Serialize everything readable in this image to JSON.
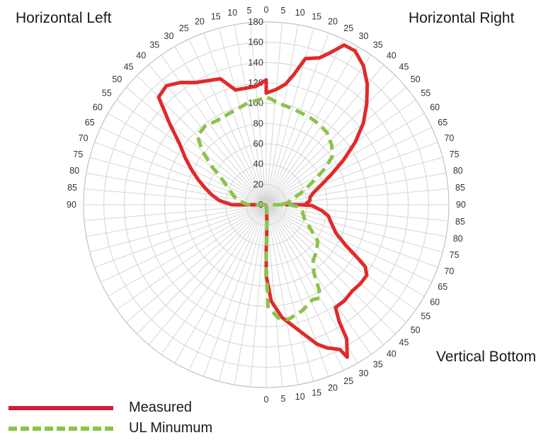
{
  "chart_data": {
    "type": "polar-line",
    "title": "",
    "quadrant_labels": {
      "top_left": "Horizontal Left",
      "top_right": "Horizontal Right",
      "bottom_right": "Vertical Bottom"
    },
    "radial_axis": {
      "min": 0,
      "max": 180,
      "step": 20,
      "tick_labels": [
        "0",
        "20",
        "40",
        "60",
        "80",
        "100",
        "120",
        "140",
        "160",
        "180"
      ]
    },
    "angular_tick_labels": [
      "0",
      "5",
      "10",
      "15",
      "20",
      "25",
      "30",
      "35",
      "40",
      "45",
      "50",
      "55",
      "60",
      "65",
      "70",
      "75",
      "80",
      "85",
      "90"
    ],
    "angle_unit": "degrees",
    "series": [
      {
        "name": "Measured",
        "color": "#e02a2a",
        "line": "solid",
        "points": [
          {
            "r": 0,
            "a": 180
          },
          {
            "r": 5,
            "a": 175
          },
          {
            "r": 20,
            "a": 178
          },
          {
            "r": 45,
            "a": 180
          },
          {
            "r": 70,
            "a": 180
          },
          {
            "r": 95,
            "a": 177
          },
          {
            "r": 112,
            "a": 172
          },
          {
            "r": 129,
            "a": 165
          },
          {
            "r": 146,
            "a": 160
          },
          {
            "r": 153,
            "a": 157
          },
          {
            "r": 160,
            "a": 153
          },
          {
            "r": 170,
            "a": 152
          },
          {
            "r": 154,
            "a": 149
          },
          {
            "r": 136,
            "a": 148
          },
          {
            "r": 122,
            "a": 146
          },
          {
            "r": 122,
            "a": 141
          },
          {
            "r": 120,
            "a": 135
          },
          {
            "r": 121,
            "a": 130
          },
          {
            "r": 121,
            "a": 125
          },
          {
            "r": 115,
            "a": 122
          },
          {
            "r": 103,
            "a": 120
          },
          {
            "r": 88,
            "a": 117
          },
          {
            "r": 74,
            "a": 112
          },
          {
            "r": 67,
            "a": 106
          },
          {
            "r": 62,
            "a": 100
          },
          {
            "r": 55,
            "a": 96
          },
          {
            "r": 45,
            "a": 91
          },
          {
            "r": 35,
            "a": 90
          },
          {
            "r": 20,
            "a": 90
          },
          {
            "r": 38,
            "a": 90
          },
          {
            "r": 43,
            "a": 85
          },
          {
            "r": 44,
            "a": 80
          },
          {
            "r": 49,
            "a": 75
          },
          {
            "r": 58,
            "a": 70
          },
          {
            "r": 71,
            "a": 65
          },
          {
            "r": 88,
            "a": 60
          },
          {
            "r": 107,
            "a": 55
          },
          {
            "r": 125,
            "a": 50
          },
          {
            "r": 140,
            "a": 45
          },
          {
            "r": 155,
            "a": 40
          },
          {
            "r": 167,
            "a": 35
          },
          {
            "r": 175,
            "a": 30
          },
          {
            "r": 175,
            "a": 26
          },
          {
            "r": 163,
            "a": 23
          },
          {
            "r": 154,
            "a": 20
          },
          {
            "r": 149,
            "a": 15
          },
          {
            "r": 131,
            "a": 12
          },
          {
            "r": 120,
            "a": 9
          },
          {
            "r": 114,
            "a": 5
          },
          {
            "r": 110,
            "a": 0
          },
          {
            "r": 123,
            "a": 0
          },
          {
            "r": 117,
            "a": -5
          },
          {
            "r": 117,
            "a": -15
          },
          {
            "r": 132,
            "a": -20
          },
          {
            "r": 139,
            "a": -30
          },
          {
            "r": 147,
            "a": -35
          },
          {
            "r": 153,
            "a": -40
          },
          {
            "r": 150,
            "a": -45
          },
          {
            "r": 124,
            "a": -50
          },
          {
            "r": 104,
            "a": -55
          },
          {
            "r": 92,
            "a": -60
          },
          {
            "r": 81,
            "a": -65
          },
          {
            "r": 71,
            "a": -70
          },
          {
            "r": 62,
            "a": -75
          },
          {
            "r": 54,
            "a": -80
          },
          {
            "r": 46,
            "a": -85
          },
          {
            "r": 34,
            "a": -90
          },
          {
            "r": 8,
            "a": -90
          },
          {
            "r": 0,
            "a": -90
          }
        ]
      },
      {
        "name": "UL Minumum",
        "color": "#8bc34a",
        "line": "dashed",
        "points": [
          {
            "r": 0,
            "a": 180
          },
          {
            "r": 5,
            "a": 175
          },
          {
            "r": 20,
            "a": 178
          },
          {
            "r": 60,
            "a": 180
          },
          {
            "r": 100,
            "a": 179
          },
          {
            "r": 112,
            "a": 174
          },
          {
            "r": 115,
            "a": 169
          },
          {
            "r": 110,
            "a": 161
          },
          {
            "r": 104,
            "a": 154
          },
          {
            "r": 106,
            "a": 150
          },
          {
            "r": 98,
            "a": 148
          },
          {
            "r": 82,
            "a": 145
          },
          {
            "r": 72,
            "a": 140
          },
          {
            "r": 67,
            "a": 132
          },
          {
            "r": 62,
            "a": 125
          },
          {
            "r": 52,
            "a": 120
          },
          {
            "r": 45,
            "a": 115
          },
          {
            "r": 40,
            "a": 110
          },
          {
            "r": 36,
            "a": 100
          },
          {
            "r": 30,
            "a": 93
          },
          {
            "r": 24,
            "a": 90
          },
          {
            "r": 8,
            "a": 90
          },
          {
            "r": 14,
            "a": 90
          },
          {
            "r": 21,
            "a": 85
          },
          {
            "r": 26,
            "a": 78
          },
          {
            "r": 35,
            "a": 72
          },
          {
            "r": 46,
            "a": 66
          },
          {
            "r": 56,
            "a": 62
          },
          {
            "r": 69,
            "a": 58
          },
          {
            "r": 80,
            "a": 54
          },
          {
            "r": 87,
            "a": 48
          },
          {
            "r": 93,
            "a": 40
          },
          {
            "r": 95,
            "a": 33
          },
          {
            "r": 96,
            "a": 27
          },
          {
            "r": 97,
            "a": 20
          },
          {
            "r": 99,
            "a": 12
          },
          {
            "r": 101,
            "a": 6
          },
          {
            "r": 104,
            "a": 3
          },
          {
            "r": 106,
            "a": 0
          },
          {
            "r": 104,
            "a": -3
          },
          {
            "r": 102,
            "a": -10
          },
          {
            "r": 97,
            "a": -22
          },
          {
            "r": 96,
            "a": -30
          },
          {
            "r": 98,
            "a": -38
          },
          {
            "r": 96,
            "a": -45
          },
          {
            "r": 82,
            "a": -50
          },
          {
            "r": 65,
            "a": -55
          },
          {
            "r": 50,
            "a": -60
          },
          {
            "r": 40,
            "a": -67
          },
          {
            "r": 33,
            "a": -75
          },
          {
            "r": 26,
            "a": -82
          },
          {
            "r": 20,
            "a": -88
          },
          {
            "r": 16,
            "a": -90
          },
          {
            "r": 0,
            "a": -90
          }
        ]
      }
    ],
    "legend": {
      "placement": "bottom-left",
      "entries": [
        {
          "label": "Measured",
          "color": "#cc1f3f",
          "line": "solid"
        },
        {
          "label": "UL Minumum",
          "color": "#8bc34a",
          "line": "dashed"
        }
      ]
    },
    "grid": true
  }
}
